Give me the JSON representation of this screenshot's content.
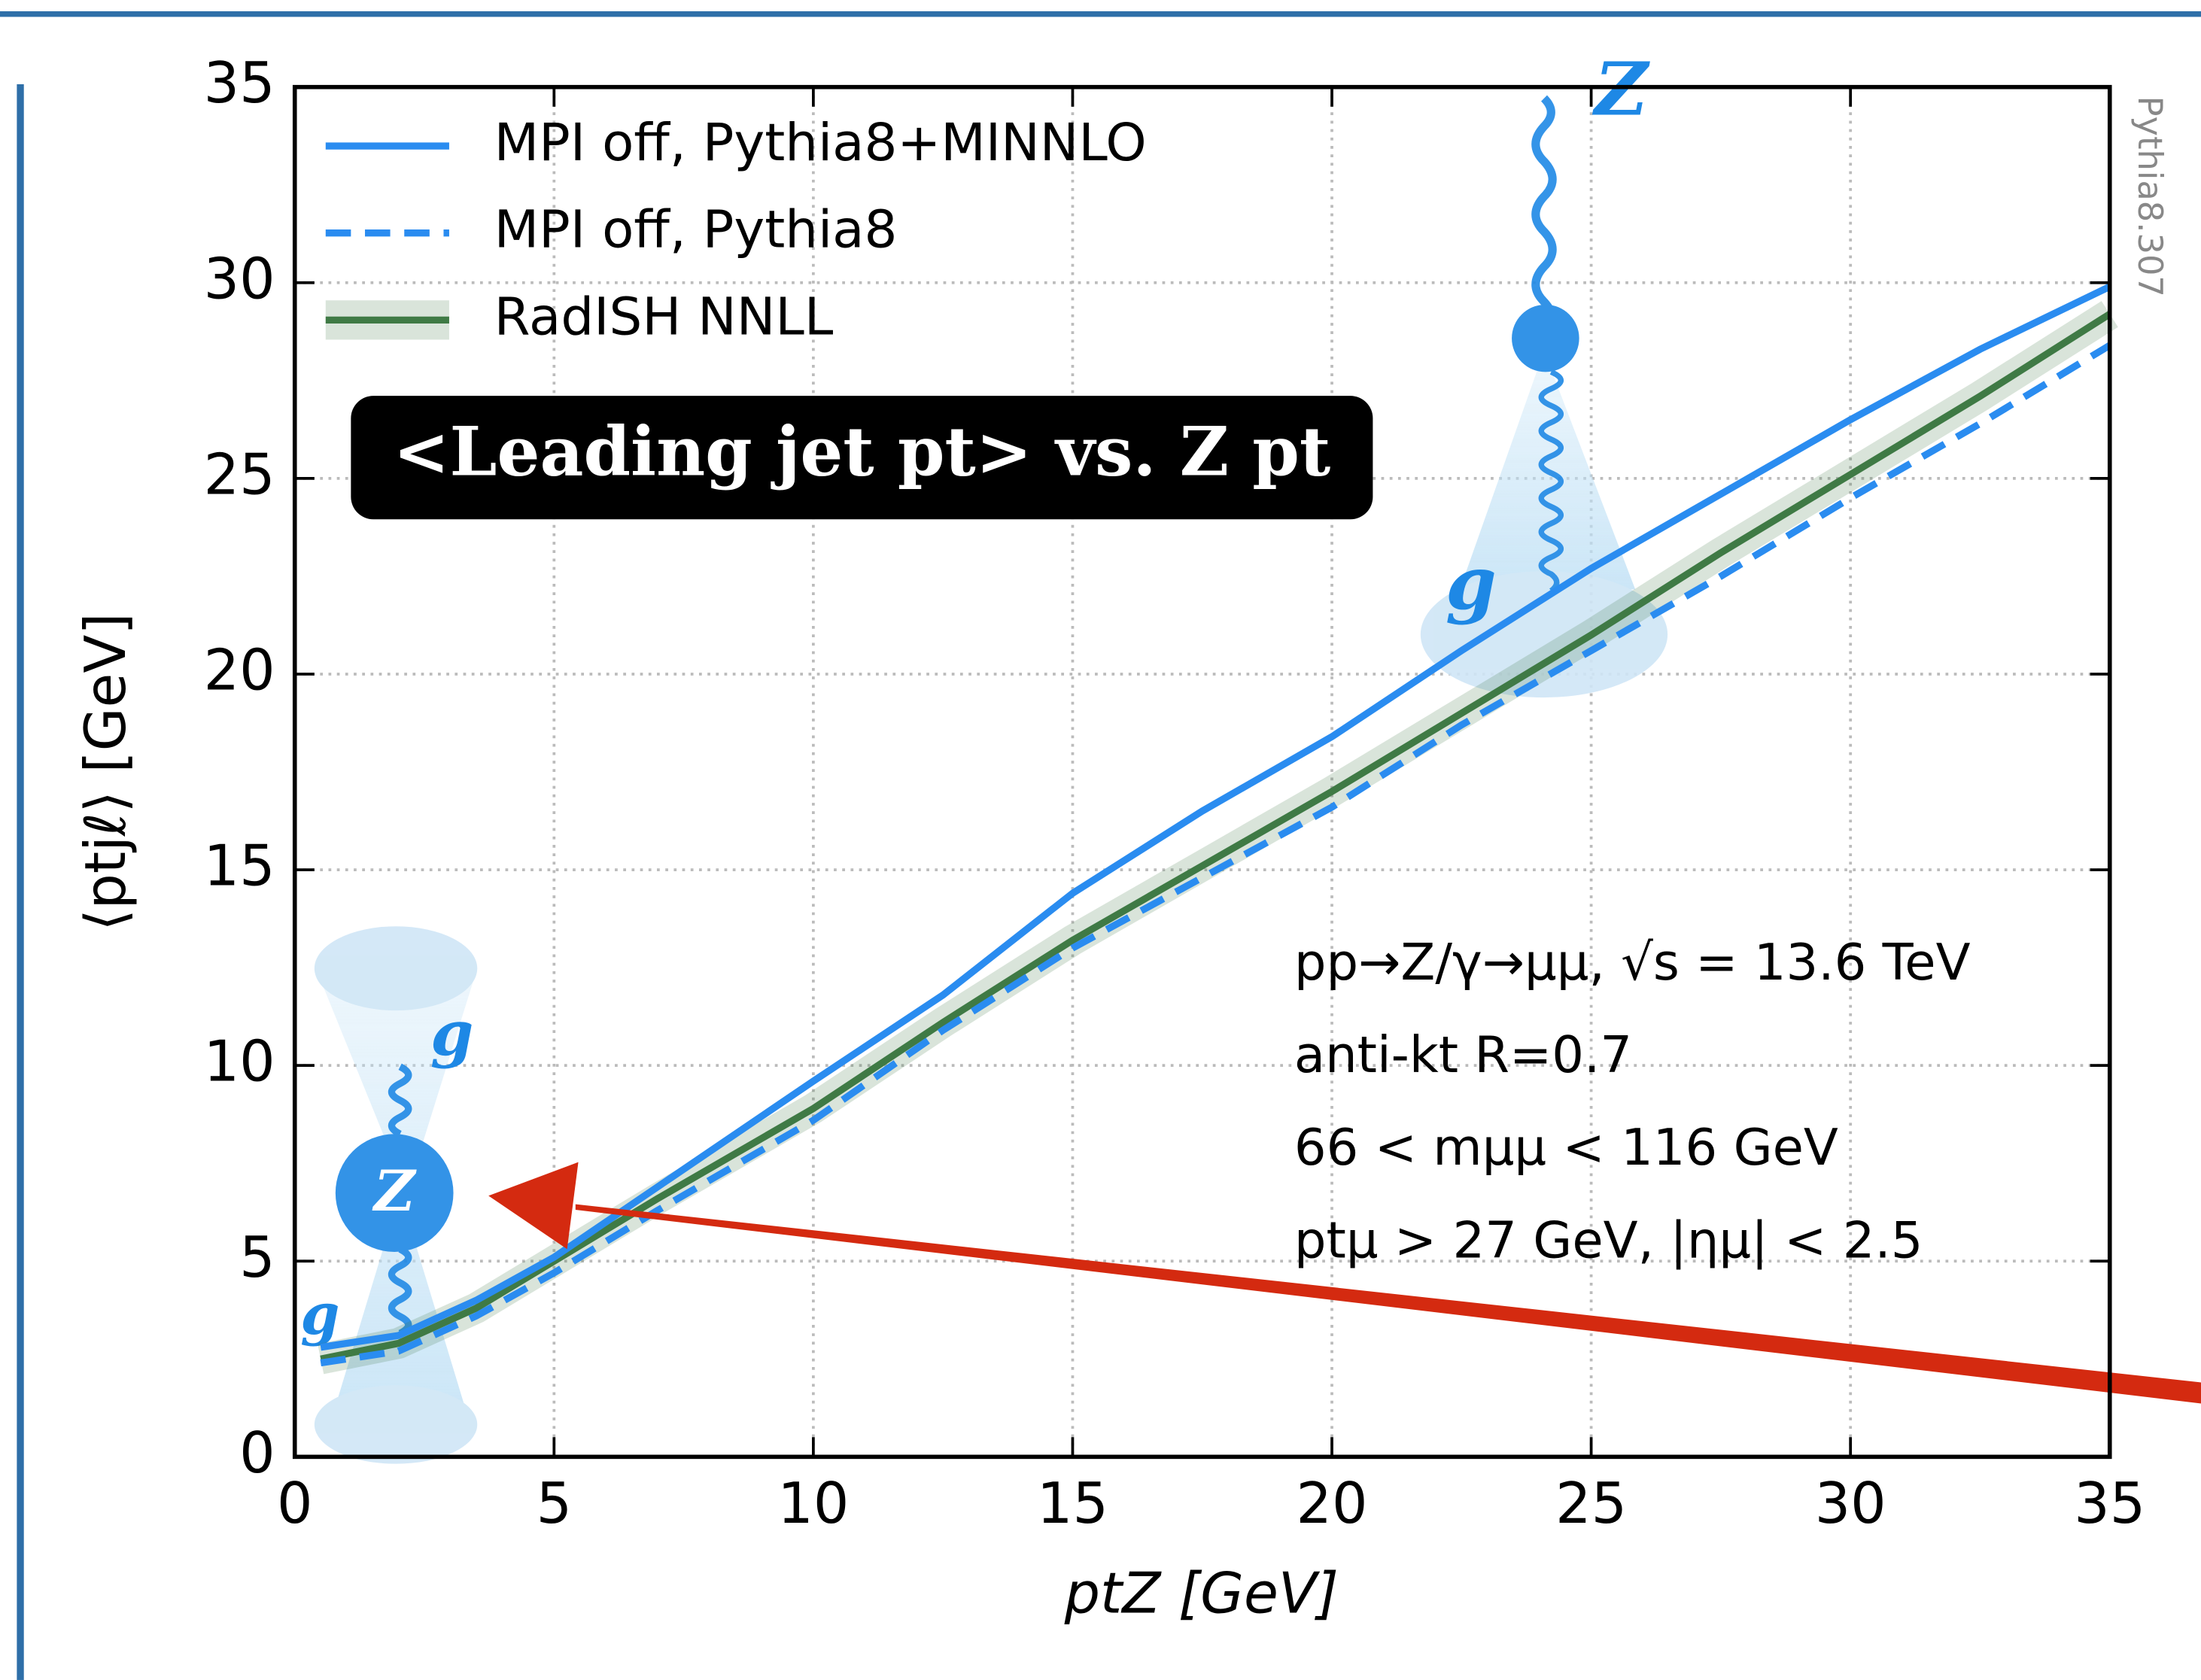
{
  "chart_data": {
    "type": "line",
    "x_label": "ptZ [GeV]",
    "y_label": "⟨ptjℓ⟩ [GeV]",
    "badge": "<Leading jet pt> vs. Z pt",
    "side_note": "Pythia8.307",
    "annotations": [
      "pp→Z/γ→μμ, √s = 13.6 TeV",
      "anti-kt R=0.7",
      "66 < mμμ < 116 GeV",
      "ptμ > 27 GeV, |ημ| < 2.5"
    ],
    "icon_labels": [
      "Z",
      "g",
      "Z",
      "g",
      "g"
    ],
    "x": [
      0.5,
      2,
      3.5,
      5,
      7,
      10,
      12.5,
      15,
      17.5,
      20,
      22.5,
      25,
      27.5,
      30,
      32.5,
      35
    ],
    "series": [
      {
        "name": "MPI off, Pythia8+MINNLO",
        "color": "#2a8cf0",
        "linestyle": "solid",
        "values": [
          2.8,
          3.1,
          4.0,
          5.1,
          6.9,
          9.6,
          11.8,
          14.4,
          16.5,
          18.4,
          20.6,
          22.7,
          24.6,
          26.5,
          28.3,
          29.9
        ]
      },
      {
        "name": "MPI off, Pythia8",
        "color": "#2a8cf0",
        "linestyle": "dashed",
        "values": [
          2.4,
          2.7,
          3.6,
          4.7,
          6.3,
          8.6,
          10.9,
          13.0,
          14.8,
          16.6,
          18.7,
          20.6,
          22.5,
          24.5,
          26.4,
          28.4
        ]
      },
      {
        "name": "RadISH NNLL",
        "color": "#3f7a45",
        "linestyle": "solid",
        "band": true,
        "values": [
          2.5,
          2.9,
          3.8,
          5.0,
          6.6,
          8.9,
          11.1,
          13.2,
          15.1,
          17.0,
          19.0,
          21.0,
          23.1,
          25.1,
          27.1,
          29.2
        ]
      }
    ],
    "xlim": [
      0,
      35
    ],
    "ylim": [
      0,
      35
    ],
    "xticks": [
      0,
      5,
      10,
      15,
      20,
      25,
      30,
      35
    ],
    "yticks": [
      0,
      5,
      10,
      15,
      20,
      25,
      30,
      35
    ],
    "grid": true,
    "legend": "upper left"
  }
}
